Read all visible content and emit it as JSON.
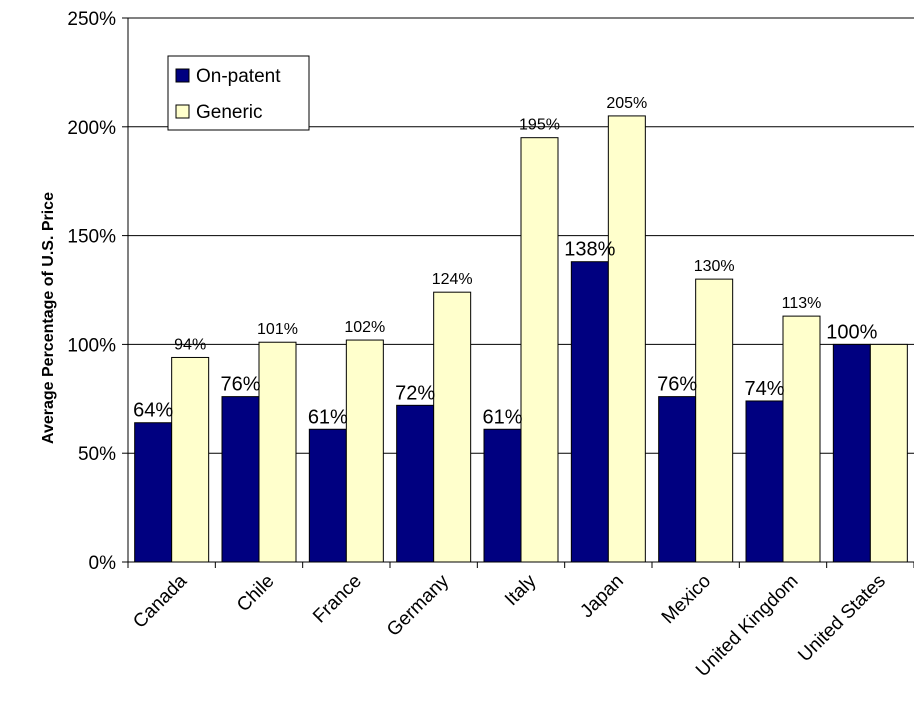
{
  "chart_data": {
    "type": "bar",
    "title": "",
    "xlabel": "",
    "ylabel": "Average Percentage of U.S. Price",
    "ylim": [
      0,
      250
    ],
    "yticks": [
      "0%",
      "50%",
      "100%",
      "150%",
      "200%",
      "250%"
    ],
    "ytick_values": [
      0,
      50,
      100,
      150,
      200,
      250
    ],
    "grid": true,
    "legend_position": "top-left",
    "categories": [
      "Canada",
      "Chile",
      "France",
      "Germany",
      "Italy",
      "Japan",
      "Mexico",
      "United Kingdom",
      "United States"
    ],
    "series": [
      {
        "name": "On-patent",
        "color": "#000080",
        "values": [
          64,
          76,
          61,
          72,
          61,
          138,
          76,
          74,
          100
        ],
        "labels": [
          "64%",
          "76%",
          "61%",
          "72%",
          "61%",
          "138%",
          "76%",
          "74%",
          "100%"
        ]
      },
      {
        "name": "Generic",
        "color": "#FFFFCC",
        "values": [
          94,
          101,
          102,
          124,
          195,
          205,
          130,
          113,
          100
        ],
        "labels": [
          "94%",
          "101%",
          "102%",
          "124%",
          "195%",
          "205%",
          "130%",
          "113%",
          ""
        ]
      }
    ]
  }
}
